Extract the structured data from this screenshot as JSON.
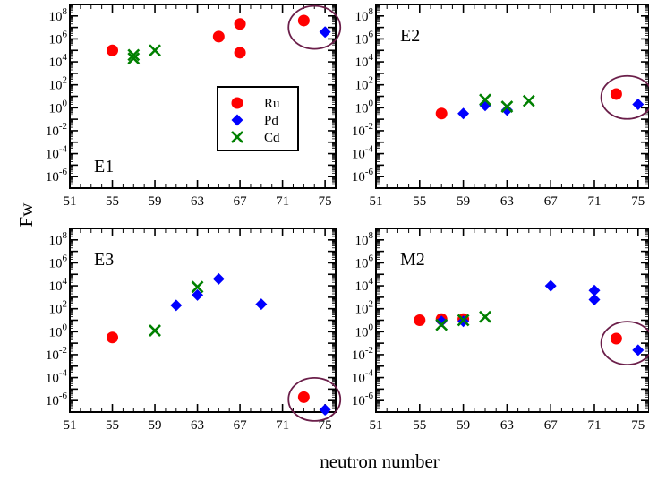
{
  "chart_data": {
    "type": "scatter",
    "ylabel": "Fw",
    "xlabel": "neutron number",
    "x_ticks": [
      51,
      55,
      59,
      63,
      67,
      71,
      75
    ],
    "xlim": [
      51,
      76
    ],
    "y_scale": "log",
    "ylim_exponent": [
      -7,
      9
    ],
    "y_tick_exponents": [
      -6,
      -4,
      -2,
      0,
      2,
      4,
      6,
      8
    ],
    "y_tick_labels": [
      {
        "base": "10",
        "exp": "-6"
      },
      {
        "base": "10",
        "exp": "-4"
      },
      {
        "base": "10",
        "exp": "-2"
      },
      {
        "base": "10",
        "exp": "0"
      },
      {
        "base": "10",
        "exp": "2"
      },
      {
        "base": "10",
        "exp": "4"
      },
      {
        "base": "10",
        "exp": "6"
      },
      {
        "base": "10",
        "exp": "8"
      }
    ],
    "legend": {
      "placement": "inside E1 panel, center-right",
      "entries": [
        {
          "name": "Ru",
          "color": "#ff0000",
          "marker": "circle"
        },
        {
          "name": "Pd",
          "color": "#0000ff",
          "marker": "diamond"
        },
        {
          "name": "Cd",
          "color": "#008000",
          "marker": "x"
        }
      ]
    },
    "highlight_color": "#6b1f4a",
    "panels": [
      {
        "label": "E1",
        "series": [
          {
            "name": "Ru",
            "points": [
              [
                55,
                5.0
              ],
              [
                65,
                6.2
              ],
              [
                67,
                7.3
              ],
              [
                67,
                4.8
              ],
              [
                73,
                7.6
              ]
            ]
          },
          {
            "name": "Pd",
            "points": [
              [
                75,
                6.6
              ]
            ]
          },
          {
            "name": "Cd",
            "points": [
              [
                57,
                4.6
              ],
              [
                57,
                4.3
              ],
              [
                59,
                5.0
              ]
            ]
          }
        ],
        "highlight": {
          "x": 74,
          "y_exp": 7.0
        }
      },
      {
        "label": "E2",
        "series": [
          {
            "name": "Ru",
            "points": [
              [
                57,
                -0.5
              ],
              [
                73,
                1.2
              ]
            ]
          },
          {
            "name": "Pd",
            "points": [
              [
                59,
                -0.5
              ],
              [
                61,
                0.2
              ],
              [
                63,
                -0.2
              ],
              [
                75,
                0.3
              ]
            ]
          },
          {
            "name": "Cd",
            "points": [
              [
                61,
                0.7
              ],
              [
                63,
                0.1
              ],
              [
                65,
                0.6
              ]
            ]
          }
        ],
        "highlight": {
          "x": 74,
          "y_exp": 0.9
        }
      },
      {
        "label": "E3",
        "series": [
          {
            "name": "Ru",
            "points": [
              [
                55,
                -0.5
              ],
              [
                73,
                -5.7
              ]
            ]
          },
          {
            "name": "Pd",
            "points": [
              [
                61,
                2.3
              ],
              [
                63,
                3.2
              ],
              [
                65,
                4.6
              ],
              [
                69,
                2.4
              ],
              [
                75,
                -6.8
              ]
            ]
          },
          {
            "name": "Cd",
            "points": [
              [
                59,
                0.1
              ],
              [
                63,
                3.9
              ]
            ]
          }
        ],
        "highlight": {
          "x": 74,
          "y_exp": -5.9
        }
      },
      {
        "label": "M2",
        "series": [
          {
            "name": "Ru",
            "points": [
              [
                55,
                1.0
              ],
              [
                57,
                1.1
              ],
              [
                59,
                1.1
              ],
              [
                73,
                -0.6
              ]
            ]
          },
          {
            "name": "Pd",
            "points": [
              [
                57,
                0.9
              ],
              [
                59,
                0.9
              ],
              [
                67,
                4.0
              ],
              [
                71,
                3.6
              ],
              [
                71,
                2.8
              ],
              [
                75,
                -1.6
              ]
            ]
          },
          {
            "name": "Cd",
            "points": [
              [
                57,
                0.6
              ],
              [
                59,
                1.0
              ],
              [
                61,
                1.3
              ]
            ]
          }
        ],
        "highlight": {
          "x": 74,
          "y_exp": -1.0
        }
      }
    ]
  }
}
